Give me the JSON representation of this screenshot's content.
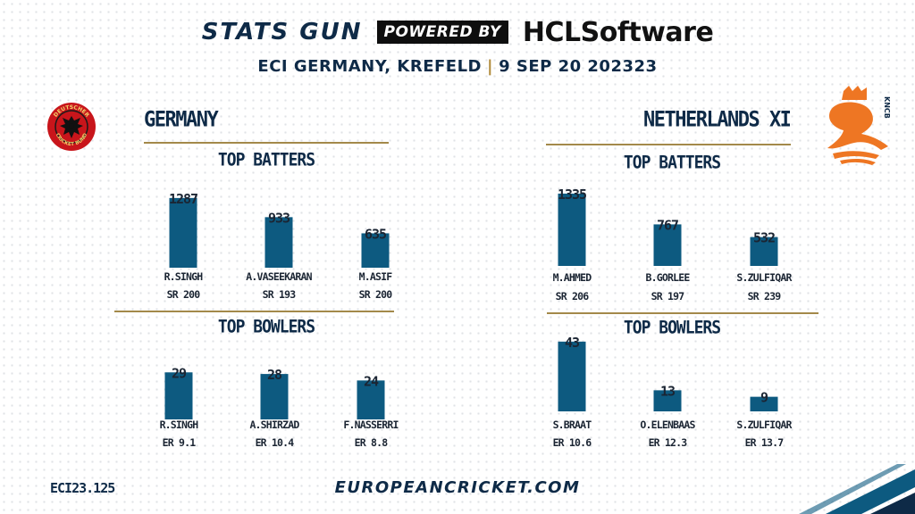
{
  "header": {
    "brand_left": "STATS GUN",
    "powered_by": "POWERED BY",
    "brand_right": "HCLSoftware",
    "match_venue": "ECI GERMANY, KREFELD",
    "match_date": "9 SEP 20 202323"
  },
  "teams": [
    {
      "name": "GERMANY",
      "logo_text": "DEUTSCHER CRICKET BUND",
      "batters_title": "TOP BATTERS",
      "bowlers_title": "TOP BOWLERS"
    },
    {
      "name": "NETHERLANDS XI",
      "logo_text": "KNCB",
      "batters_title": "TOP BATTERS",
      "bowlers_title": "TOP BOWLERS"
    }
  ],
  "chart_data": [
    {
      "type": "bar",
      "title": "TOP BATTERS",
      "team": "GERMANY",
      "categories": [
        "R.SINGH",
        "A.VASEEKARAN",
        "M.ASIF"
      ],
      "values": [
        1287,
        933,
        635
      ],
      "stats": [
        "SR 200",
        "SR 193",
        "SR 200"
      ],
      "ylim": [
        0,
        1400
      ],
      "color": "#0d5a80"
    },
    {
      "type": "bar",
      "title": "TOP BOWLERS",
      "team": "GERMANY",
      "categories": [
        "R.SINGH",
        "A.SHIRZAD",
        "F.NASSERRI"
      ],
      "values": [
        29,
        28,
        24
      ],
      "stats": [
        "ER 9.1",
        "ER 10.4",
        "ER 8.8"
      ],
      "ylim": [
        0,
        44
      ],
      "color": "#0d5a80"
    },
    {
      "type": "bar",
      "title": "TOP BATTERS",
      "team": "NETHERLANDS XI",
      "categories": [
        "M.AHMED",
        "B.GORLEE",
        "S.ZULFIQAR"
      ],
      "values": [
        1335,
        767,
        532
      ],
      "stats": [
        "SR 206",
        "SR 197",
        "SR 239"
      ],
      "ylim": [
        0,
        1400
      ],
      "color": "#0d5a80"
    },
    {
      "type": "bar",
      "title": "TOP BOWLERS",
      "team": "NETHERLANDS XI",
      "categories": [
        "S.BRAAT",
        "O.ELENBAAS",
        "S.ZULFIQAR"
      ],
      "values": [
        43,
        13,
        9
      ],
      "stats": [
        "ER 10.6",
        "ER 12.3",
        "ER 13.7"
      ],
      "ylim": [
        0,
        44
      ],
      "color": "#0d5a80"
    }
  ],
  "footer": {
    "code": "ECI23.125",
    "site": "EUROPEANCRICKET.COM"
  },
  "colors": {
    "primary": "#0e2a47",
    "bar": "#0d5a80",
    "gold": "#a3894a",
    "germany_red": "#c8151b",
    "kncb_orange": "#ee7623"
  }
}
